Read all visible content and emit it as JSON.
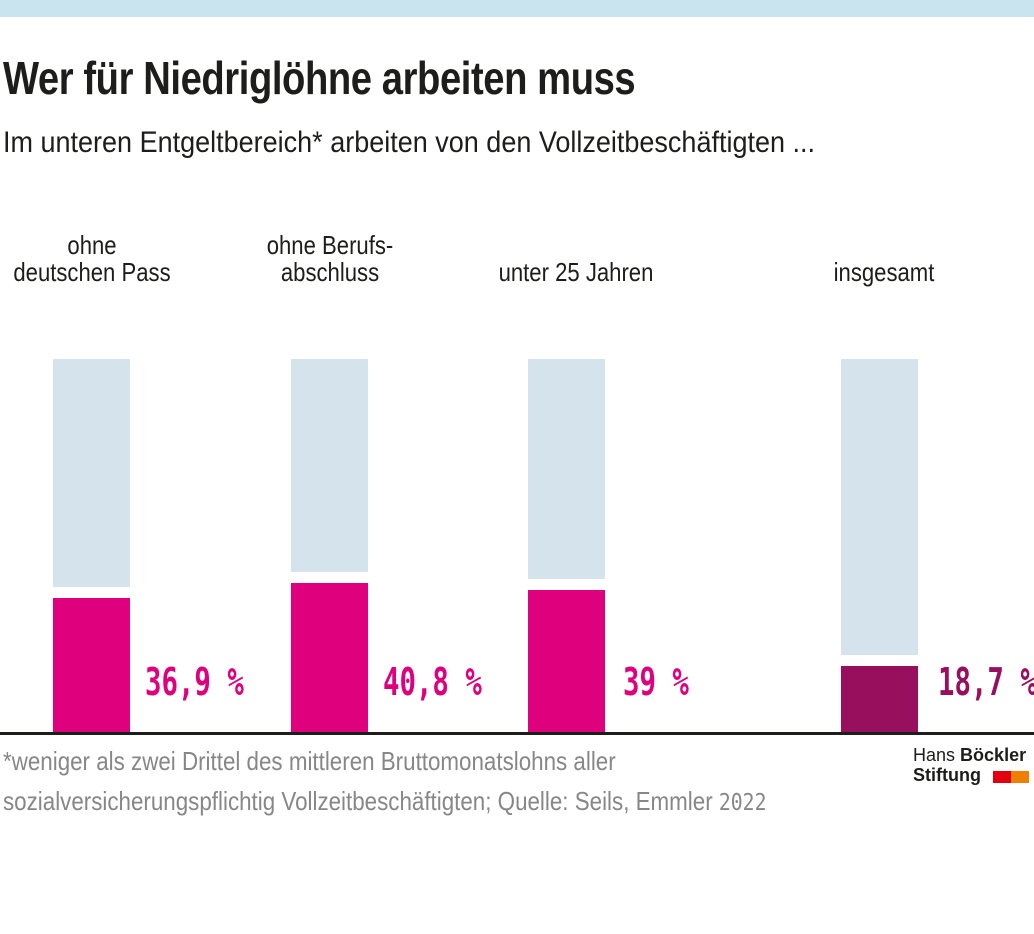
{
  "header": {
    "title": "Wer für Niedriglöhne arbeiten muss",
    "subtitle": "Im unteren Entgeltbereich* arbeiten von den Vollzeitbeschäftigten ..."
  },
  "chart_data": {
    "type": "bar",
    "title": "Wer für Niedriglöhne arbeiten muss",
    "subtitle": "Im unteren Entgeltbereich* arbeiten von den Vollzeitbeschäftigten ...",
    "categories": [
      "ohne deutschen Pass",
      "ohne Berufsabschluss",
      "unter 25 Jahren",
      "insgesamt"
    ],
    "label_lines": [
      [
        "ohne",
        "deutschen Pass"
      ],
      [
        "ohne Berufs-",
        "abschluss"
      ],
      [
        "unter 25 Jahren"
      ],
      [
        "insgesamt"
      ]
    ],
    "values": [
      36.9,
      40.8,
      39,
      18.7
    ],
    "value_labels": [
      "36,9 %",
      "40,8 %",
      "39 %",
      "18,7 %"
    ],
    "unit": "%",
    "ylim": [
      0,
      100
    ],
    "grid": false,
    "legend": false,
    "note": "light-blue track shows remainder to 100%",
    "colors": {
      "track": "#d5e3ed",
      "bar": "#df007d",
      "bar_total": "#970f5d",
      "top_strip": "#c9e3ef",
      "axis": "#1d1d1b",
      "text": "#1d1d1b",
      "footer_gray": "#878787"
    },
    "bar_colors": [
      "#df007d",
      "#df007d",
      "#df007d",
      "#970f5d"
    ]
  },
  "footer": {
    "note_line1": "*weniger als zwei Drittel des mittleren Bruttomonatslohns aller",
    "note_line2": "sozialversicherungspflichtig Vollzeitbeschäftigten; Quelle: Seils, Emmler",
    "year": "2022"
  },
  "logo": {
    "name_regular": "Hans",
    "name_bold": "Böckler",
    "line2": "Stiftung",
    "red": "#e2000f",
    "orange": "#ee7f00"
  }
}
